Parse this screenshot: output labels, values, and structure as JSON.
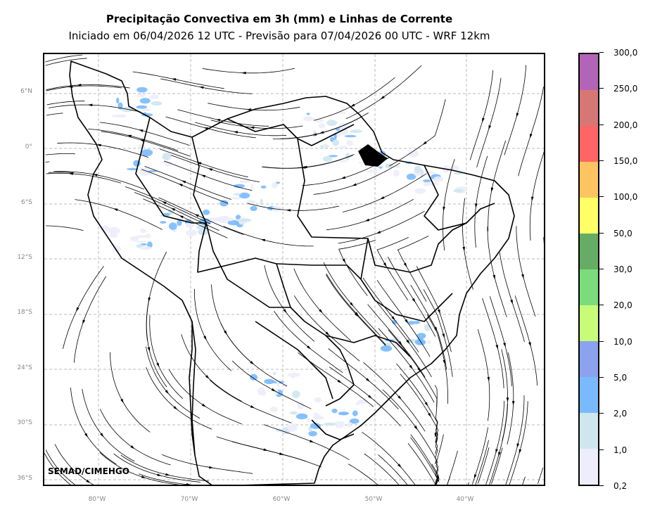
{
  "header": {
    "title": "Precipitação Convectiva em 3h (mm) e Linhas de Corrente",
    "subtitle": "Iniciado em 06/04/2026 12 UTC - Previsão para 07/04/2026 00 UTC - WRF 12km"
  },
  "map": {
    "lat_labels": [
      "6°N",
      "0°",
      "6°S",
      "12°S",
      "18°S",
      "24°S",
      "30°S",
      "36°S"
    ],
    "lon_labels": [
      "80°W",
      "70°W",
      "60°W",
      "50°W",
      "40°W"
    ],
    "credit": "SEMAD/CIMEHGO"
  },
  "colorbar": {
    "labels": [
      "0,2",
      "1,0",
      "2,0",
      "5,0",
      "10,0",
      "20,0",
      "30,0",
      "50,0",
      "100,0",
      "150,0",
      "200,0",
      "250,0",
      "300,0"
    ],
    "colors": [
      "#ededfb",
      "#cfe6ee",
      "#79baff",
      "#8ba2ee",
      "#c8fb78",
      "#7bdc7b",
      "#65ac65",
      "#ffff66",
      "#ffc462",
      "#ff6565",
      "#d67776",
      "#b264b8"
    ]
  }
}
